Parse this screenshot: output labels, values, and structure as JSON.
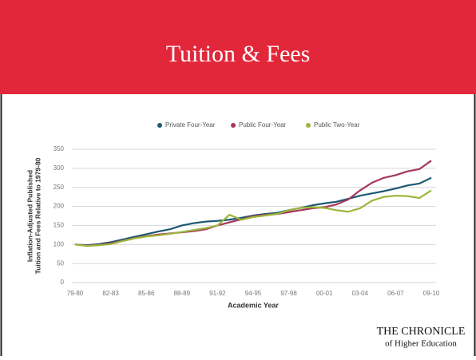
{
  "slide_title": "Tuition & Fees",
  "logo": {
    "line1": "THE CHRONICLE",
    "line2": "of Higher Education"
  },
  "chart_data": {
    "type": "line",
    "xlabel": "Academic Year",
    "ylabel": [
      "Inflation-Adjusted Published",
      "Tuition and Fees Relative to 1979-80"
    ],
    "categories": [
      "79-80",
      null,
      null,
      "82-83",
      null,
      null,
      "85-86",
      null,
      null,
      "88-89",
      null,
      null,
      "91-92",
      null,
      null,
      "94-95",
      null,
      null,
      "97-98",
      null,
      null,
      "00-01",
      null,
      null,
      "03-04",
      null,
      null,
      "06-07",
      null,
      null,
      "09-10"
    ],
    "series": [
      {
        "name": "Private Four-Year",
        "color": "#1d5872",
        "values": [
          100,
          98,
          101,
          106,
          113,
          120,
          127,
          134,
          140,
          150,
          156,
          160,
          162,
          165,
          170,
          176,
          180,
          183,
          190,
          196,
          203,
          208,
          212,
          220,
          228,
          234,
          240,
          247,
          255,
          260,
          275
        ]
      },
      {
        "name": "Public Four-Year",
        "color": "#a6375b",
        "values": [
          100,
          97,
          99,
          103,
          110,
          117,
          122,
          126,
          129,
          132,
          135,
          140,
          150,
          158,
          166,
          174,
          178,
          180,
          185,
          190,
          195,
          198,
          205,
          218,
          242,
          262,
          275,
          282,
          292,
          298,
          320
        ]
      },
      {
        "name": "Public Two-Year",
        "color": "#9ab63c",
        "values": [
          100,
          96,
          98,
          101,
          109,
          116,
          121,
          124,
          128,
          133,
          138,
          143,
          150,
          178,
          165,
          172,
          176,
          180,
          190,
          196,
          198,
          196,
          190,
          186,
          195,
          215,
          225,
          228,
          227,
          222,
          242
        ]
      }
    ],
    "ylim": [
      0,
      350
    ],
    "yticks": [
      0,
      50,
      100,
      150,
      200,
      250,
      300,
      350
    ],
    "grid": true,
    "legend": "top"
  }
}
